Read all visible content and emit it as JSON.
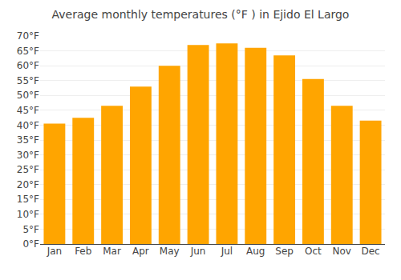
{
  "chart_data": {
    "type": "bar",
    "title": "Average monthly temperatures (°F ) in Ejido El Largo",
    "categories": [
      "Jan",
      "Feb",
      "Mar",
      "Apr",
      "May",
      "Jun",
      "Jul",
      "Aug",
      "Sep",
      "Oct",
      "Nov",
      "Dec"
    ],
    "values": [
      40.5,
      42.5,
      46.5,
      53.0,
      60.0,
      67.0,
      67.5,
      66.0,
      63.5,
      55.5,
      46.5,
      41.5
    ],
    "color": "#FFA500",
    "ylim": [
      0,
      70
    ],
    "yticks": [
      {
        "value": 0,
        "label": "0°F"
      },
      {
        "value": 5,
        "label": "5°F"
      },
      {
        "value": 10,
        "label": "10°F"
      },
      {
        "value": 15,
        "label": "15°F"
      },
      {
        "value": 20,
        "label": "20°F"
      },
      {
        "value": 25,
        "label": "25°F"
      },
      {
        "value": 30,
        "label": "30°F"
      },
      {
        "value": 35,
        "label": "35°F"
      },
      {
        "value": 40,
        "label": "40°F"
      },
      {
        "value": 45,
        "label": "45°F"
      },
      {
        "value": 50,
        "label": "50°F"
      },
      {
        "value": 55,
        "label": "55°F"
      },
      {
        "value": 60,
        "label": "60°F"
      },
      {
        "value": 65,
        "label": "65°F"
      },
      {
        "value": 70,
        "label": "70°F"
      }
    ],
    "grid": true
  }
}
